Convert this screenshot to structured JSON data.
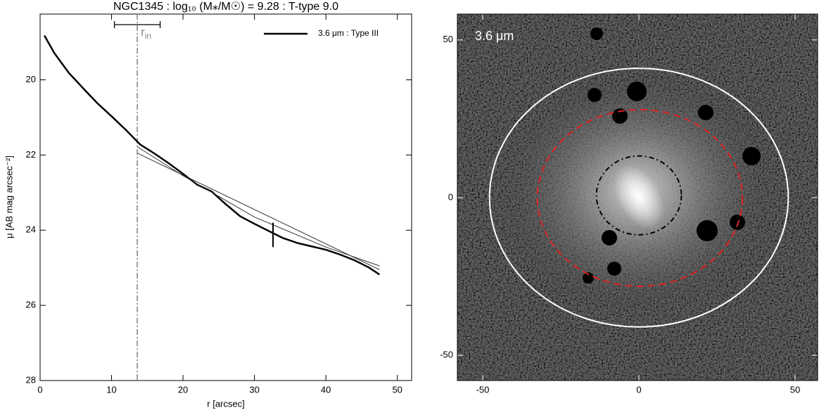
{
  "chart_data": [
    {
      "type": "line",
      "title": "NGC1345 : log₁₀ (M⁎/M☉) = 9.28 : T-type 9.0",
      "xlabel": "r [arcsec]",
      "ylabel": "μ [AB mag arcsec⁻²]",
      "xlim": [
        0,
        52
      ],
      "xticks": [
        0,
        10,
        20,
        30,
        40,
        50
      ],
      "ylim": [
        18.25,
        28
      ],
      "yticks": [
        20,
        22,
        24,
        26,
        28
      ],
      "y_inverted": true,
      "legend": "upper right",
      "series": [
        {
          "name": "3.6 μm : Type III",
          "color": "#000000",
          "x": [
            0.6,
            2,
            4,
            6,
            8,
            10,
            12,
            14,
            16,
            18,
            20,
            22,
            24,
            26,
            28,
            30,
            32,
            34,
            36,
            38,
            40,
            42,
            44,
            46,
            47.5
          ],
          "values": [
            18.82,
            19.29,
            19.81,
            20.22,
            20.62,
            20.97,
            21.33,
            21.72,
            21.96,
            22.22,
            22.5,
            22.79,
            22.97,
            23.31,
            23.63,
            23.83,
            24.02,
            24.21,
            24.34,
            24.43,
            24.52,
            24.65,
            24.8,
            24.99,
            25.18
          ]
        },
        {
          "color": "#333333",
          "x": [
            13.6,
            20,
            30,
            40,
            47.5
          ],
          "values": [
            21.78,
            22.55,
            23.65,
            24.45,
            24.95
          ]
        },
        {
          "color": "#333333",
          "x": [
            13.6,
            47.5
          ],
          "values": [
            21.95,
            25.05
          ]
        }
      ],
      "r_in": {
        "text": "r",
        "subscript": "in",
        "x": 13.6,
        "bracket": [
          10.4,
          16.8
        ]
      },
      "break": {
        "x": 32.6,
        "y": [
          23.8,
          24.45
        ]
      }
    },
    {
      "type": "image",
      "label": "3.6 μm",
      "xlim": [
        -58.1,
        57.2
      ],
      "xticks": [
        -50,
        0,
        50
      ],
      "ylim": [
        -58,
        58.2
      ],
      "yticks": [
        -50,
        0,
        50
      ],
      "ellipses": [
        {
          "cx": 0,
          "cy": 0,
          "rx": 47.8,
          "ry": 41,
          "color": "#ffffff",
          "dash": "solid"
        },
        {
          "cx": 0.3,
          "cy": -0.1,
          "rx": 32.8,
          "ry": 28,
          "color": "#dd2222",
          "dash": "dashed"
        },
        {
          "cx": 0,
          "cy": 0.7,
          "rx": 13.6,
          "ry": 12.5,
          "color": "#000000",
          "dash": "dashdot"
        }
      ]
    }
  ]
}
